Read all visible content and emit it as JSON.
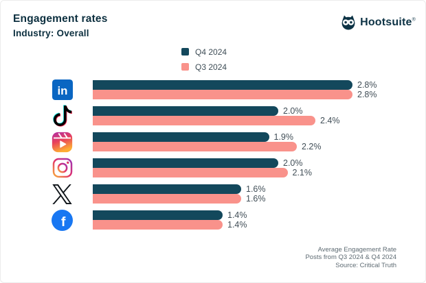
{
  "header": {
    "title": "Engagement rates",
    "subtitle": "Industry: Overall",
    "brand": "Hootsuite",
    "brand_mark": "®"
  },
  "legend": {
    "items": [
      {
        "label": "Q4 2024",
        "color": "#13485C"
      },
      {
        "label": "Q3 2024",
        "color": "#F9928B"
      }
    ]
  },
  "colors": {
    "q4_bar": "#13485C",
    "q3_bar": "#F9928B",
    "title_text": "#0C2F3F",
    "value_label": "#414E57",
    "footer_text": "#5D6A72",
    "linkedin_blue": "#0A66C2",
    "facebook_blue": "#1877F2"
  },
  "icons": {
    "brand": "owl-icon",
    "platforms": [
      "linkedin-icon",
      "tiktok-icon",
      "instagram-reels-icon",
      "instagram-icon",
      "x-icon",
      "facebook-icon"
    ]
  },
  "chart_data": {
    "type": "bar",
    "orientation": "horizontal",
    "title": "Engagement rates",
    "subtitle": "Industry: Overall",
    "unit": "%",
    "xmax": 2.8,
    "grid": false,
    "legend_position": "top-center",
    "categories": [
      "LinkedIn",
      "TikTok",
      "Instagram Reels",
      "Instagram",
      "X",
      "Facebook"
    ],
    "series": [
      {
        "name": "Q4 2024",
        "color": "#13485C",
        "values": [
          2.8,
          2.0,
          1.9,
          2.0,
          1.6,
          1.4
        ],
        "labels": [
          "2.8%",
          "2.0%",
          "1.9%",
          "2.0%",
          "1.6%",
          "1.4%"
        ]
      },
      {
        "name": "Q3 2024",
        "color": "#F9928B",
        "values": [
          2.8,
          2.4,
          2.2,
          2.1,
          1.6,
          1.4
        ],
        "labels": [
          "2.8%",
          "2.4%",
          "2.2%",
          "2.1%",
          "1.6%",
          "1.4%"
        ]
      }
    ]
  },
  "footer": {
    "line1": "Average Engagement Rate",
    "line2": "Posts from Q3 2024 & Q4 2024",
    "line3": "Source: Critical Truth"
  }
}
